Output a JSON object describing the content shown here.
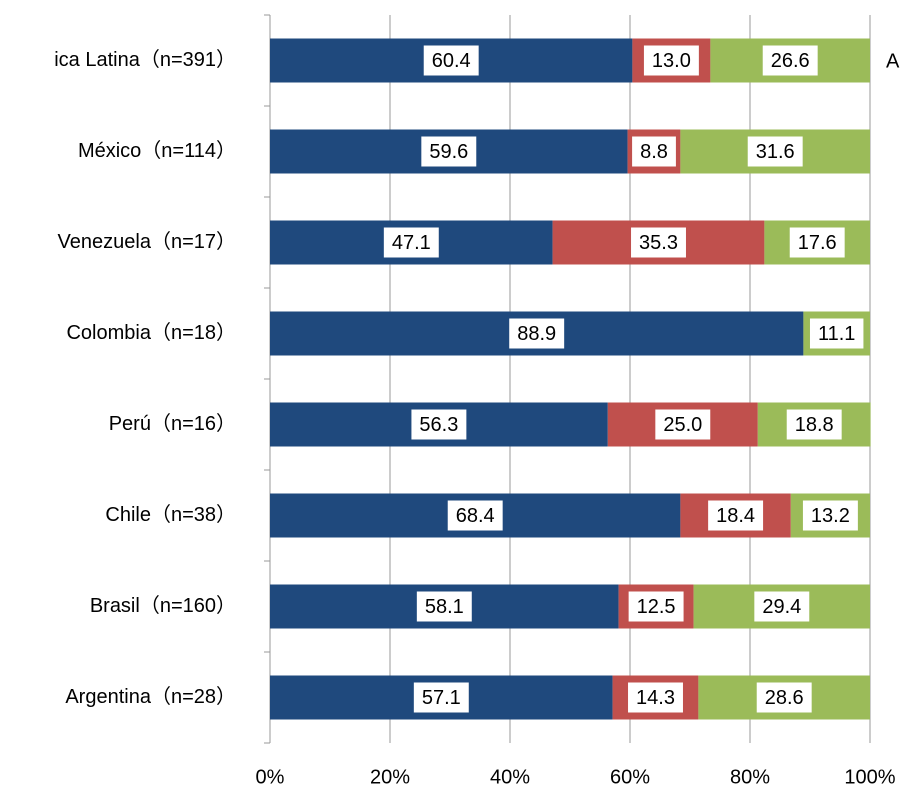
{
  "chart_data": {
    "type": "stacked-barh",
    "categories": [
      "ica Latina（n=391）",
      "México（n=114）",
      "Venezuela（n=17）",
      "Colombia（n=18）",
      "Perú（n=16）",
      "Chile（n=38）",
      "Brasil（n=160）",
      "Argentina（n=28）"
    ],
    "series": [
      {
        "color": "#1f497d",
        "values": [
          60.4,
          59.6,
          47.1,
          88.9,
          56.3,
          68.4,
          58.1,
          57.1
        ],
        "value_labels": [
          "60.4",
          "59.6",
          "47.1",
          "88.9",
          "56.3",
          "68.4",
          "58.1",
          "57.1"
        ]
      },
      {
        "color": "#c0504d",
        "values": [
          13.0,
          8.8,
          35.3,
          null,
          25.0,
          18.4,
          12.5,
          14.3
        ],
        "value_labels": [
          "13.0",
          "8.8",
          "35.3",
          null,
          "25.0",
          "18.4",
          "12.5",
          "14.3"
        ]
      },
      {
        "color": "#9bbb59",
        "values": [
          26.6,
          31.6,
          17.6,
          11.1,
          18.8,
          13.2,
          29.4,
          28.6
        ],
        "value_labels": [
          "26.6",
          "31.6",
          "17.6",
          "11.1",
          "18.8",
          "13.2",
          "29.4",
          "28.6"
        ]
      }
    ],
    "xlim": [
      0,
      100
    ],
    "xticks": [
      {
        "value": 0,
        "label": "0%"
      },
      {
        "value": 20,
        "label": "20%"
      },
      {
        "value": 40,
        "label": "40%"
      },
      {
        "value": 60,
        "label": "60%"
      },
      {
        "value": 80,
        "label": "80%"
      },
      {
        "value": 100,
        "label": "100%"
      }
    ],
    "grid": true,
    "annotation": "A"
  }
}
